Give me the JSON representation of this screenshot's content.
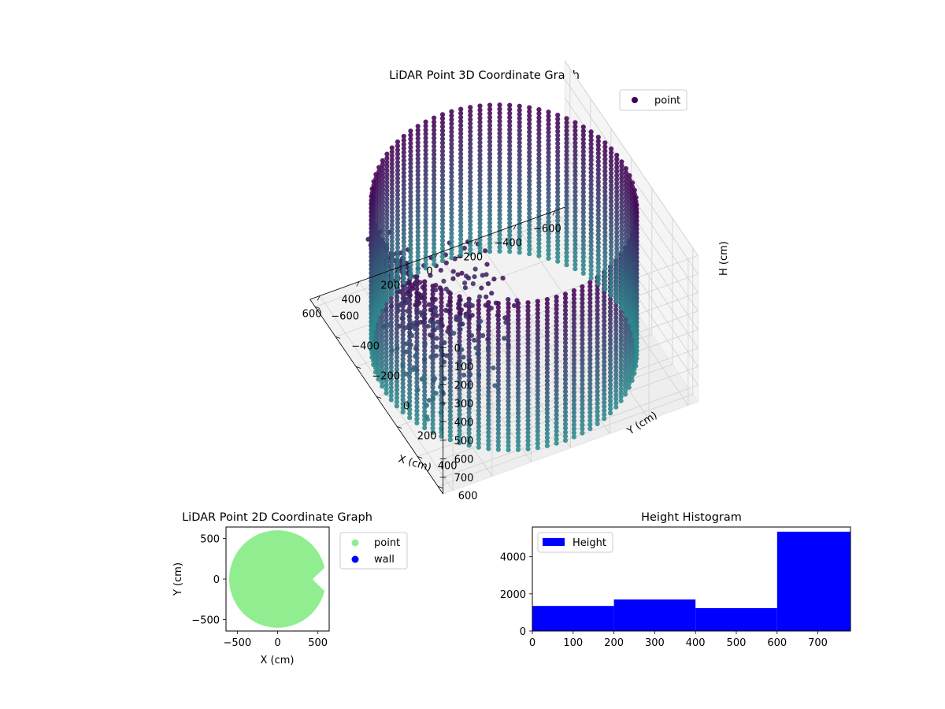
{
  "chart_data": [
    {
      "type": "scatter",
      "projection": "3d",
      "title": "LiDAR Point 3D Coordinate Graph",
      "xlabel": "X (cm)",
      "ylabel": "Y (cm)",
      "zlabel": "H (cm)",
      "xlim": [
        -650,
        650
      ],
      "ylim": [
        -650,
        650
      ],
      "zlim": [
        790,
        0
      ],
      "xticks": [
        -600,
        -400,
        -200,
        0,
        200,
        400,
        600
      ],
      "yticks": [
        -600,
        -400,
        -200,
        0,
        200,
        400,
        600
      ],
      "zticks": [
        0,
        100,
        200,
        300,
        400,
        500,
        600,
        700
      ],
      "z_axis_inverted": true,
      "grid": true,
      "legend": {
        "placement": "upper-right",
        "entries": [
          "point"
        ]
      },
      "colormap": "viridis",
      "colors": {
        "top": "#440154",
        "bottom": "#2c8a8d",
        "legend_marker": "#440154"
      },
      "series": [
        {
          "name": "point",
          "description_values": {
            "wall_radius_cm": 600,
            "wall_center": [
              0,
              0
            ],
            "wall_height_range_cm": [
              0,
              790
            ],
            "interior_features": [
              {
                "x_range": [
                  150,
                  560
                ],
                "y_range": [
                  0,
                  450
                ],
                "h_range": [
                  100,
                  520
                ]
              },
              {
                "x_range": [
                  460,
                  600
                ],
                "y_range": [
                  -200,
                  350
                ],
                "h_range": [
                  100,
                  780
                ]
              }
            ]
          }
        }
      ]
    },
    {
      "type": "scatter",
      "title": "LiDAR Point 2D Coordinate Graph",
      "xlabel": "X (cm)",
      "ylabel": "Y (cm)",
      "xlim": [
        -640,
        640
      ],
      "ylim": [
        -640,
        640
      ],
      "xticks": [
        -500,
        0,
        500
      ],
      "yticks": [
        -500,
        0,
        500
      ],
      "legend": {
        "placement": "outside-right",
        "entries": [
          "point",
          "wall"
        ]
      },
      "series": [
        {
          "name": "point",
          "color": "#90ee90",
          "region": {
            "shape": "disc",
            "center": [
              0,
              0
            ],
            "radius_cm": 600,
            "notch": {
              "x": [
                450,
                640
              ],
              "y": [
                -200,
                190
              ]
            }
          }
        },
        {
          "name": "wall",
          "color": "#0000ff",
          "values": []
        }
      ]
    },
    {
      "type": "bar",
      "title": "Height Histogram",
      "xlim": [
        0,
        780
      ],
      "ylim": [
        0,
        5600
      ],
      "xticks": [
        0,
        100,
        200,
        300,
        400,
        500,
        600,
        700
      ],
      "yticks": [
        0,
        2000,
        4000
      ],
      "legend": {
        "placement": "upper-left",
        "entries": [
          "Height"
        ]
      },
      "series": [
        {
          "name": "Height",
          "color": "#0000ff",
          "bins": [
            {
              "start": 0,
              "end": 200,
              "count": 1350
            },
            {
              "start": 200,
              "end": 400,
              "count": 1700
            },
            {
              "start": 400,
              "end": 600,
              "count": 1230
            },
            {
              "start": 600,
              "end": 780,
              "count": 5350
            }
          ]
        }
      ]
    }
  ]
}
